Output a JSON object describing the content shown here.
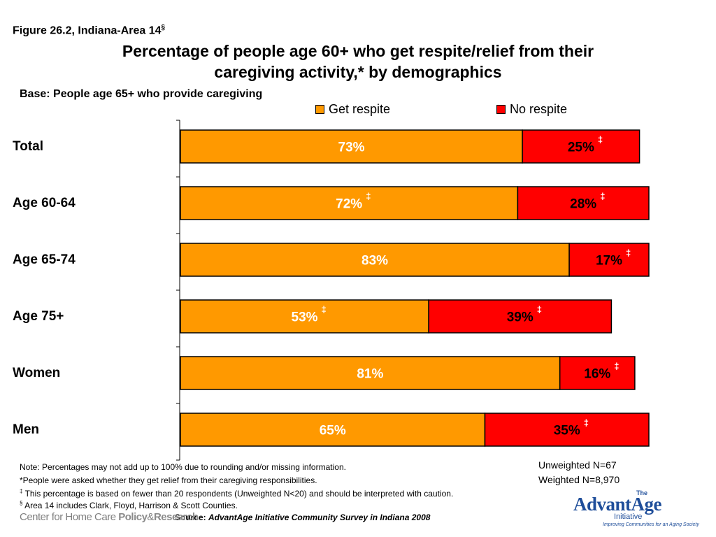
{
  "header": {
    "figure_label": "Figure 26.2, Indiana-Area 14",
    "figure_label_sup": "§",
    "title_line1": "Percentage of people age 60+ who get respite/relief from their",
    "title_line2": "caregiving activity,* by demographics",
    "base": "Base: People age 65+ who provide caregiving"
  },
  "chart_data": {
    "type": "bar",
    "orientation": "horizontal",
    "stacked": true,
    "categories": [
      "Total",
      "Age 60-64",
      "Age 65-74",
      "Age 75+",
      "Women",
      "Men"
    ],
    "series": [
      {
        "name": "Get respite",
        "color": "#FF9900",
        "values": [
          73,
          72,
          83,
          53,
          81,
          65
        ],
        "labels": [
          "73%",
          "72%",
          "83%",
          "53%",
          "81%",
          "65%"
        ],
        "caution": [
          false,
          true,
          false,
          true,
          false,
          false
        ]
      },
      {
        "name": "No respite",
        "color": "#FF0000",
        "values": [
          25,
          28,
          17,
          39,
          16,
          35
        ],
        "labels": [
          "25%",
          "28%",
          "17%",
          "39%",
          "16%",
          "35%"
        ],
        "caution": [
          true,
          true,
          true,
          true,
          true,
          true
        ]
      }
    ],
    "caution_mark": "‡",
    "xlim": [
      0,
      100
    ],
    "legend_position": "top",
    "grid": false
  },
  "notes": {
    "line1": "Note: Percentages may not add up to 100% due to rounding and/or missing information.",
    "line2": "*People were asked whether they get relief from their caregiving responsibilities.",
    "line3_mark": "‡",
    "line3": " This percentage is based on fewer than 20 respondents (Unweighted N<20) and should be interpreted with caution.",
    "line4_mark": "§",
    "line4": " Area 14 includes Clark, Floyd, Harrison & Scott Counties."
  },
  "sample": {
    "unweighted": "Unweighted N=67",
    "weighted": "Weighted N=8,970"
  },
  "source": {
    "prefix": "Source: ",
    "text": "AdvantAge Initiative Community Survey in Indiana 2008"
  },
  "logos": {
    "left_logo_part1": "Center for Home Care ",
    "left_logo_part2": "Policy",
    "left_logo_part3": "&",
    "left_logo_part4": "Research",
    "right_logo_the": "The",
    "right_logo_word": "AdvantAge",
    "right_logo_initiative": "Initiative",
    "right_logo_tagline": "Improving Communities for an Aging Society",
    "brand_color": "#1F4E9A"
  }
}
